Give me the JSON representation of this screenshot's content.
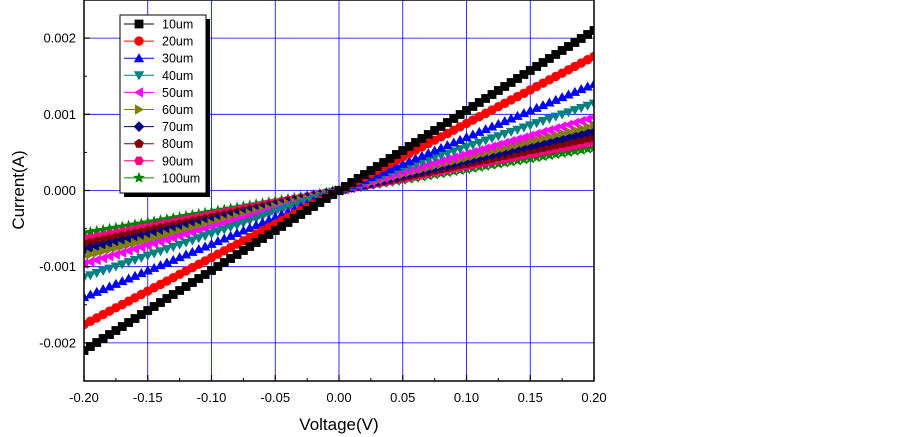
{
  "chart_data": {
    "type": "scatter",
    "title": "",
    "xlabel": "Voltage(V)",
    "ylabel": "Current(A)",
    "xlim": [
      -0.2,
      0.2
    ],
    "ylim": [
      -0.0025,
      0.0025
    ],
    "xticks": [
      -0.2,
      -0.15,
      -0.1,
      -0.05,
      0.0,
      0.05,
      0.1,
      0.15,
      0.2
    ],
    "xtick_labels": [
      "-0.20",
      "-0.15",
      "-0.10",
      "-0.05",
      "0.00",
      "0.05",
      "0.10",
      "0.15",
      "0.20"
    ],
    "yticks": [
      -0.002,
      -0.001,
      0.0,
      0.001,
      0.002
    ],
    "ytick_labels": [
      "-0.002",
      "-0.001",
      "0.000",
      "0.001",
      "0.002"
    ],
    "grid": true,
    "legend_position": "top-left",
    "x": {
      "start": -0.2,
      "stop": 0.2,
      "step": 0.005
    },
    "series": [
      {
        "name": "10um",
        "marker": "square",
        "color": "#000000",
        "slope": 0.0105
      },
      {
        "name": "20um",
        "marker": "circle",
        "color": "#ff0000",
        "slope": 0.0088
      },
      {
        "name": "30um",
        "marker": "triangle-up",
        "color": "#0000ff",
        "slope": 0.007
      },
      {
        "name": "40um",
        "marker": "triangle-down",
        "color": "#008080",
        "slope": 0.0057
      },
      {
        "name": "50um",
        "marker": "triangle-left",
        "color": "#ff00ff",
        "slope": 0.0048
      },
      {
        "name": "60um",
        "marker": "triangle-right",
        "color": "#808000",
        "slope": 0.0043
      },
      {
        "name": "70um",
        "marker": "diamond",
        "color": "#000080",
        "slope": 0.0039
      },
      {
        "name": "80um",
        "marker": "pentagon",
        "color": "#800000",
        "slope": 0.0035
      },
      {
        "name": "90um",
        "marker": "hexagon",
        "color": "#ff0080",
        "slope": 0.0032
      },
      {
        "name": "100um",
        "marker": "star",
        "color": "#008000",
        "slope": 0.0028
      }
    ]
  }
}
